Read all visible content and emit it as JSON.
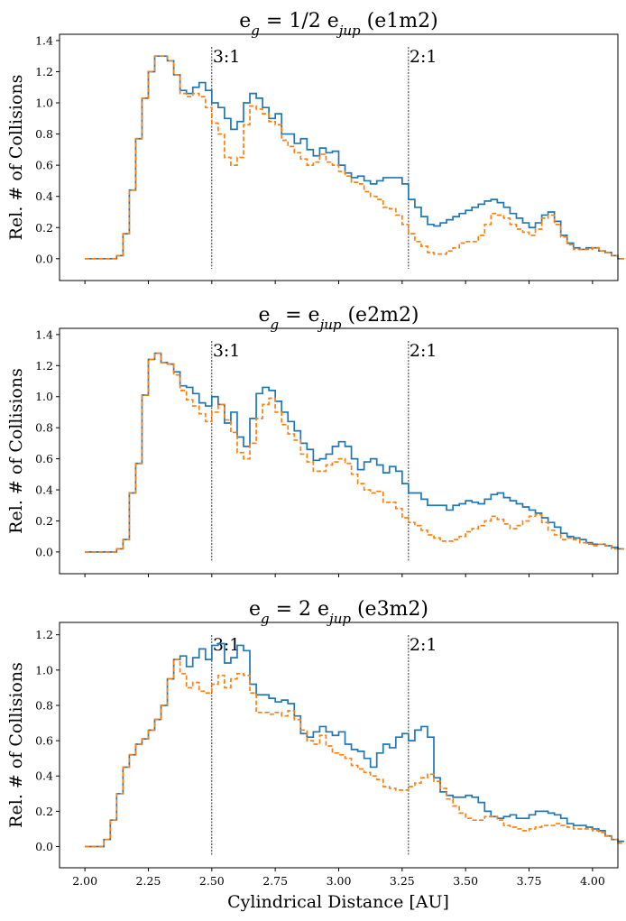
{
  "figure": {
    "xlabel": "Cylindrical Distance [AU]",
    "ylabel": "Rel. # of Collisions",
    "xticks": [
      "2.00",
      "2.25",
      "2.50",
      "2.75",
      "3.00",
      "3.25",
      "3.50",
      "3.75",
      "4.00"
    ],
    "colors": {
      "series1": "#1f77b4",
      "series2": "#ff7f0e",
      "axes": "#000000"
    }
  },
  "chart_data": [
    {
      "type": "line",
      "step": true,
      "title": {
        "pre": "e",
        "sub": "g",
        "mid": " = 1/2 e",
        "sub2": "jup",
        "post": " (e1m2)"
      },
      "xlim": [
        1.9,
        4.1
      ],
      "ylim": [
        -0.14,
        1.44
      ],
      "yticks": [
        "0.0",
        "0.2",
        "0.4",
        "0.6",
        "0.8",
        "1.0",
        "1.2",
        "1.4"
      ],
      "resonances": [
        {
          "label": "3:1",
          "x": 2.5
        },
        {
          "label": "2:1",
          "x": 3.275
        }
      ],
      "x_start": 2.0,
      "x_step": 0.025,
      "series": [
        {
          "name": "solid",
          "style": "solid",
          "values": [
            0.0,
            0.0,
            0.0,
            0.0,
            0.0,
            0.02,
            0.16,
            0.44,
            0.77,
            1.03,
            1.2,
            1.3,
            1.3,
            1.27,
            1.18,
            1.08,
            1.06,
            1.1,
            1.13,
            1.08,
            1.0,
            0.97,
            0.9,
            0.83,
            0.88,
            1.0,
            1.06,
            1.03,
            0.97,
            0.9,
            0.93,
            0.8,
            0.8,
            0.74,
            0.77,
            0.7,
            0.66,
            0.71,
            0.68,
            0.69,
            0.6,
            0.55,
            0.52,
            0.53,
            0.5,
            0.48,
            0.5,
            0.52,
            0.52,
            0.52,
            0.48,
            0.38,
            0.33,
            0.27,
            0.22,
            0.21,
            0.23,
            0.25,
            0.27,
            0.29,
            0.31,
            0.33,
            0.35,
            0.37,
            0.38,
            0.36,
            0.33,
            0.29,
            0.26,
            0.23,
            0.2,
            0.23,
            0.28,
            0.3,
            0.24,
            0.15,
            0.1,
            0.07,
            0.06,
            0.07,
            0.07,
            0.05,
            0.04,
            0.02,
            0.0
          ]
        },
        {
          "name": "dashed",
          "style": "dashed",
          "values": [
            0.0,
            0.0,
            0.0,
            0.0,
            0.0,
            0.02,
            0.16,
            0.44,
            0.77,
            1.03,
            1.2,
            1.3,
            1.3,
            1.27,
            1.18,
            1.06,
            1.04,
            1.06,
            1.04,
            0.97,
            0.87,
            0.8,
            0.65,
            0.6,
            0.65,
            0.86,
            0.98,
            0.96,
            0.93,
            0.88,
            0.86,
            0.76,
            0.72,
            0.68,
            0.64,
            0.6,
            0.62,
            0.67,
            0.62,
            0.6,
            0.56,
            0.53,
            0.49,
            0.48,
            0.43,
            0.4,
            0.38,
            0.33,
            0.32,
            0.28,
            0.22,
            0.16,
            0.11,
            0.08,
            0.04,
            0.03,
            0.03,
            0.05,
            0.07,
            0.1,
            0.11,
            0.11,
            0.15,
            0.22,
            0.29,
            0.28,
            0.26,
            0.22,
            0.19,
            0.17,
            0.15,
            0.19,
            0.26,
            0.28,
            0.22,
            0.14,
            0.09,
            0.06,
            0.06,
            0.06,
            0.07,
            0.05,
            0.04,
            0.02,
            0.0
          ]
        }
      ]
    },
    {
      "type": "line",
      "step": true,
      "title": {
        "pre": "e",
        "sub": "g",
        "mid": " = e",
        "sub2": "jup",
        "post": " (e2m2)"
      },
      "xlim": [
        1.9,
        4.1
      ],
      "ylim": [
        -0.14,
        1.44
      ],
      "yticks": [
        "0.0",
        "0.2",
        "0.4",
        "0.6",
        "0.8",
        "1.0",
        "1.2",
        "1.4"
      ],
      "resonances": [
        {
          "label": "3:1",
          "x": 2.5
        },
        {
          "label": "2:1",
          "x": 3.275
        }
      ],
      "x_start": 2.0,
      "x_step": 0.025,
      "series": [
        {
          "name": "solid",
          "style": "solid",
          "values": [
            0.0,
            0.0,
            0.0,
            0.0,
            0.0,
            0.02,
            0.08,
            0.38,
            0.57,
            1.01,
            1.24,
            1.28,
            1.22,
            1.21,
            1.16,
            1.07,
            1.06,
            1.02,
            0.96,
            0.94,
            1.0,
            0.95,
            0.83,
            0.9,
            0.74,
            0.68,
            0.86,
            1.02,
            1.06,
            1.04,
            0.97,
            0.9,
            0.84,
            0.78,
            0.7,
            0.66,
            0.59,
            0.6,
            0.63,
            0.68,
            0.71,
            0.68,
            0.6,
            0.53,
            0.58,
            0.6,
            0.56,
            0.51,
            0.55,
            0.52,
            0.44,
            0.38,
            0.38,
            0.34,
            0.3,
            0.3,
            0.3,
            0.27,
            0.3,
            0.31,
            0.33,
            0.32,
            0.31,
            0.34,
            0.37,
            0.38,
            0.35,
            0.33,
            0.31,
            0.29,
            0.27,
            0.25,
            0.22,
            0.19,
            0.16,
            0.12,
            0.1,
            0.09,
            0.08,
            0.06,
            0.05,
            0.05,
            0.04,
            0.03,
            0.02
          ]
        },
        {
          "name": "dashed",
          "style": "dashed",
          "values": [
            0.0,
            0.0,
            0.0,
            0.0,
            0.0,
            0.02,
            0.08,
            0.38,
            0.57,
            1.01,
            1.24,
            1.28,
            1.22,
            1.21,
            1.14,
            1.04,
            0.98,
            0.94,
            0.89,
            0.84,
            0.9,
            0.95,
            0.85,
            0.77,
            0.64,
            0.6,
            0.7,
            0.86,
            0.95,
            0.99,
            0.9,
            0.82,
            0.76,
            0.72,
            0.63,
            0.58,
            0.52,
            0.52,
            0.56,
            0.58,
            0.6,
            0.57,
            0.5,
            0.44,
            0.4,
            0.38,
            0.39,
            0.32,
            0.32,
            0.28,
            0.22,
            0.19,
            0.17,
            0.14,
            0.11,
            0.09,
            0.07,
            0.07,
            0.08,
            0.1,
            0.13,
            0.15,
            0.17,
            0.2,
            0.23,
            0.21,
            0.18,
            0.15,
            0.17,
            0.2,
            0.23,
            0.24,
            0.19,
            0.14,
            0.11,
            0.08,
            0.09,
            0.08,
            0.06,
            0.05,
            0.04,
            0.05,
            0.04,
            0.02,
            0.02
          ]
        }
      ]
    },
    {
      "type": "line",
      "step": true,
      "title": {
        "pre": "e",
        "sub": "g",
        "mid": " = 2 e",
        "sub2": "jup",
        "post": " (e3m2)"
      },
      "xlim": [
        1.9,
        4.1
      ],
      "ylim": [
        -0.12,
        1.27
      ],
      "yticks": [
        "0.0",
        "0.2",
        "0.4",
        "0.6",
        "0.8",
        "1.0",
        "1.2"
      ],
      "resonances": [
        {
          "label": "3:1",
          "x": 2.5
        },
        {
          "label": "2:1",
          "x": 3.275
        }
      ],
      "x_start": 2.0,
      "x_step": 0.025,
      "series": [
        {
          "name": "solid",
          "style": "solid",
          "values": [
            0.0,
            0.0,
            0.0,
            0.04,
            0.15,
            0.3,
            0.45,
            0.52,
            0.58,
            0.61,
            0.66,
            0.72,
            0.8,
            0.95,
            1.06,
            1.08,
            1.02,
            1.07,
            1.12,
            1.06,
            1.14,
            1.15,
            1.04,
            1.07,
            1.14,
            1.11,
            0.92,
            0.86,
            0.86,
            0.84,
            0.82,
            0.83,
            0.81,
            0.74,
            0.64,
            0.62,
            0.65,
            0.68,
            0.65,
            0.63,
            0.65,
            0.58,
            0.55,
            0.54,
            0.5,
            0.45,
            0.53,
            0.58,
            0.56,
            0.62,
            0.64,
            0.6,
            0.66,
            0.68,
            0.62,
            0.39,
            0.31,
            0.29,
            0.28,
            0.28,
            0.29,
            0.28,
            0.25,
            0.2,
            0.17,
            0.16,
            0.17,
            0.18,
            0.16,
            0.16,
            0.18,
            0.2,
            0.2,
            0.19,
            0.18,
            0.16,
            0.13,
            0.12,
            0.12,
            0.11,
            0.1,
            0.09,
            0.06,
            0.04,
            0.03
          ]
        },
        {
          "name": "dashed",
          "style": "dashed",
          "values": [
            0.0,
            0.0,
            0.0,
            0.04,
            0.15,
            0.3,
            0.45,
            0.52,
            0.58,
            0.61,
            0.66,
            0.72,
            0.8,
            0.95,
            1.06,
            0.98,
            0.9,
            0.93,
            0.88,
            0.87,
            0.92,
            0.97,
            0.9,
            0.95,
            0.98,
            0.97,
            0.87,
            0.76,
            0.76,
            0.75,
            0.76,
            0.74,
            0.77,
            0.72,
            0.66,
            0.6,
            0.58,
            0.63,
            0.57,
            0.53,
            0.52,
            0.5,
            0.46,
            0.44,
            0.42,
            0.4,
            0.38,
            0.34,
            0.33,
            0.32,
            0.32,
            0.34,
            0.36,
            0.39,
            0.41,
            0.37,
            0.33,
            0.27,
            0.23,
            0.19,
            0.16,
            0.15,
            0.15,
            0.17,
            0.17,
            0.15,
            0.12,
            0.11,
            0.1,
            0.09,
            0.1,
            0.11,
            0.12,
            0.12,
            0.13,
            0.12,
            0.11,
            0.1,
            0.1,
            0.1,
            0.09,
            0.08,
            0.06,
            0.04,
            0.02
          ]
        }
      ]
    }
  ]
}
